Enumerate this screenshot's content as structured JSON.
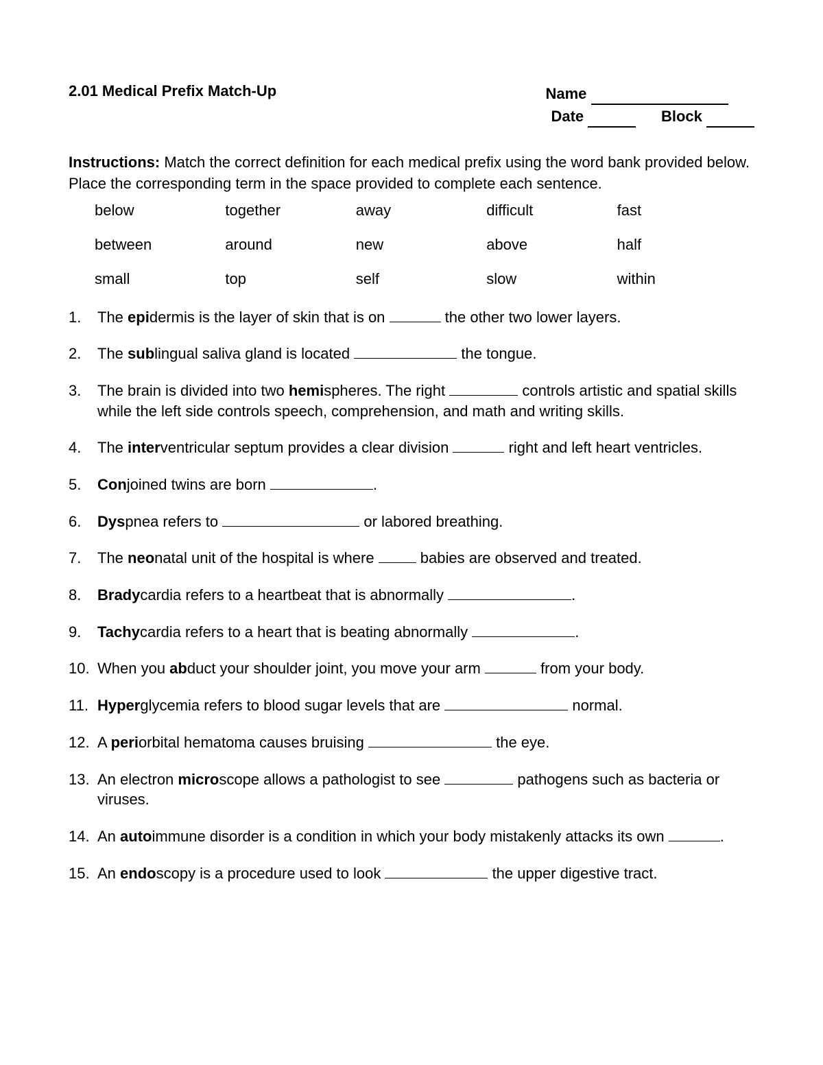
{
  "title": "2.01 Medical Prefix Match-Up",
  "header": {
    "name_label": "Name",
    "date_label": "Date",
    "block_label": "Block"
  },
  "instructions": {
    "label": "Instructions:",
    "text": "Match the correct definition for each medical prefix using the word bank provided below. Place the corresponding term in the space provided to complete each sentence."
  },
  "word_bank": [
    "below",
    "together",
    "away",
    "difficult",
    "fast",
    "between",
    "around",
    "new",
    "above",
    "half",
    "small",
    "top",
    "self",
    "slow",
    "within"
  ],
  "questions": {
    "q1": {
      "a": "The ",
      "bold": "epi",
      "b": "dermis is the layer of skin that is on ",
      "c": " the other two lower layers."
    },
    "q2": {
      "a": "The ",
      "bold": "sub",
      "b": "lingual saliva gland is located ",
      "c": " the tongue."
    },
    "q3": {
      "a": "The brain is divided into two ",
      "bold": "hemi",
      "b": "spheres. The right ",
      "c": " controls artistic and spatial skills while the left side controls speech, comprehension, and math and writing skills."
    },
    "q4": {
      "a": "The ",
      "bold": "inter",
      "b": "ventricular septum provides a clear division ",
      "c": " right and left heart ventricles."
    },
    "q5": {
      "bold": "Con",
      "b": "joined twins are born ",
      "c": "."
    },
    "q6": {
      "bold": "Dys",
      "b": "pnea refers to ",
      "c": " or labored breathing."
    },
    "q7": {
      "a": "The ",
      "bold": "neo",
      "b": "natal unit of the hospital is where ",
      "c": " babies are observed and treated."
    },
    "q8": {
      "bold": "Brady",
      "b": "cardia refers to a heartbeat that is abnormally ",
      "c": "."
    },
    "q9": {
      "bold": "Tachy",
      "b": "cardia refers to a heart that is beating abnormally ",
      "c": "."
    },
    "q10": {
      "a": "When you ",
      "bold": "ab",
      "b": "duct your shoulder joint, you move your arm ",
      "c": " from your body."
    },
    "q11": {
      "bold": "Hyper",
      "b": "glycemia refers to blood sugar levels that are ",
      "c": " normal."
    },
    "q12": {
      "a": "A ",
      "bold": "peri",
      "b": "orbital hematoma causes bruising ",
      "c": " the eye."
    },
    "q13": {
      "a": "An electron ",
      "bold": "micro",
      "b": "scope allows a pathologist to see ",
      "c": " pathogens such as bacteria or viruses."
    },
    "q14": {
      "a": "An ",
      "bold": "auto",
      "b": "immune disorder is a condition in which your body mistakenly attacks its own ",
      "c": "."
    },
    "q15": {
      "a": "An ",
      "bold": "endo",
      "b": "scopy is a procedure used to look ",
      "c": " the upper digestive tract."
    }
  }
}
